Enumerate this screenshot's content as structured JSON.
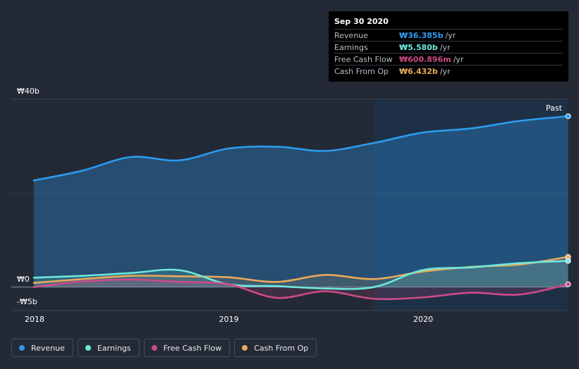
{
  "tooltip": {
    "date": "Sep 30 2020",
    "rows": [
      {
        "label": "Revenue",
        "value": "₩36.385b",
        "unit": "/yr",
        "color": "#2d9bef"
      },
      {
        "label": "Earnings",
        "value": "₩5.580b",
        "unit": "/yr",
        "color": "#6ee8dc"
      },
      {
        "label": "Free Cash Flow",
        "value": "₩600.896m",
        "unit": "/yr",
        "color": "#cd4a86"
      },
      {
        "label": "Cash From Op",
        "value": "₩6.432b",
        "unit": "/yr",
        "color": "#e8a95a"
      }
    ]
  },
  "past_label": "Past",
  "legend": [
    {
      "label": "Revenue",
      "color": "#2d9bef"
    },
    {
      "label": "Earnings",
      "color": "#6ee8dc"
    },
    {
      "label": "Free Cash Flow",
      "color": "#cd4a86"
    },
    {
      "label": "Cash From Op",
      "color": "#e8a95a"
    }
  ],
  "chart_data": {
    "type": "area",
    "ylim": [
      -5,
      40
    ],
    "y_tick_labels": [
      "₩40b",
      "₩0",
      "-₩5b"
    ],
    "y_tick_values": [
      40,
      0,
      -5
    ],
    "x_tick_labels": [
      "2018",
      "2019",
      "2020"
    ],
    "x_tick_values": [
      2018.0,
      2019.0,
      2020.0
    ],
    "highlight_from": 2019.75,
    "series": [
      {
        "name": "Revenue",
        "color": "#2d9bef",
        "x": [
          2018.0,
          2018.25,
          2018.5,
          2018.75,
          2019.0,
          2019.25,
          2019.5,
          2019.75,
          2020.0,
          2020.25,
          2020.5,
          2020.75
        ],
        "y": [
          22.7,
          24.8,
          27.7,
          27.0,
          29.5,
          29.9,
          29.0,
          30.7,
          32.9,
          33.8,
          35.4,
          36.385
        ]
      },
      {
        "name": "Earnings",
        "color": "#6ee8dc",
        "x": [
          2018.0,
          2018.25,
          2018.5,
          2018.75,
          2019.0,
          2019.25,
          2019.5,
          2019.75,
          2020.0,
          2020.25,
          2020.5,
          2020.75
        ],
        "y": [
          2.0,
          2.4,
          3.0,
          3.6,
          0.6,
          0.2,
          -0.3,
          0.0,
          3.6,
          4.2,
          5.1,
          5.58
        ]
      },
      {
        "name": "Free Cash Flow",
        "color": "#cd4a86",
        "x": [
          2018.0,
          2018.25,
          2018.5,
          2018.75,
          2019.0,
          2019.25,
          2019.5,
          2019.75,
          2020.0,
          2020.25,
          2020.5,
          2020.75
        ],
        "y": [
          0.0,
          1.2,
          1.6,
          1.1,
          0.6,
          -2.3,
          -0.9,
          -2.5,
          -2.2,
          -1.2,
          -1.6,
          0.6
        ]
      },
      {
        "name": "Cash From Op",
        "color": "#e8a95a",
        "x": [
          2018.0,
          2018.25,
          2018.5,
          2018.75,
          2019.0,
          2019.25,
          2019.5,
          2019.75,
          2020.0,
          2020.25,
          2020.5,
          2020.75
        ],
        "y": [
          0.9,
          1.7,
          2.4,
          2.3,
          2.1,
          1.1,
          2.6,
          1.7,
          3.3,
          4.3,
          4.8,
          6.432
        ]
      }
    ]
  }
}
